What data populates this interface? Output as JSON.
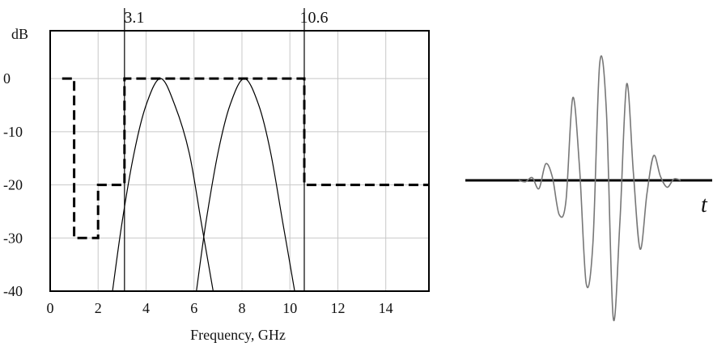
{
  "chart_data": [
    {
      "type": "line",
      "ylabel": "dB",
      "xlabel": "Frequency, GHz",
      "xlim": [
        0,
        15.8
      ],
      "ylim": [
        -40,
        9
      ],
      "x_ticks": [
        0,
        2,
        4,
        6,
        8,
        10,
        12,
        14
      ],
      "y_ticks": [
        0,
        -10,
        -20,
        -30,
        -40
      ],
      "grid": true,
      "legend": "none",
      "markers": [
        {
          "x": 3.1,
          "label": "3.1"
        },
        {
          "x": 10.6,
          "label": "10.6"
        }
      ],
      "series": [
        {
          "style": "dashed",
          "points": [
            [
              0.5,
              0
            ],
            [
              1.0,
              0
            ],
            [
              1.0,
              -30
            ],
            [
              2.0,
              -30
            ],
            [
              2.0,
              -20
            ],
            [
              3.1,
              -20
            ],
            [
              3.1,
              0
            ],
            [
              10.6,
              0
            ],
            [
              10.6,
              -20
            ],
            [
              15.8,
              -20
            ]
          ]
        },
        {
          "style": "solid",
          "points": [
            [
              2.6,
              -40
            ],
            [
              3.0,
              -27
            ],
            [
              3.5,
              -14
            ],
            [
              4.0,
              -5
            ],
            [
              4.6,
              0
            ],
            [
              5.2,
              -5
            ],
            [
              5.8,
              -14
            ],
            [
              6.3,
              -27
            ],
            [
              6.8,
              -40
            ]
          ]
        },
        {
          "style": "solid",
          "points": [
            [
              6.1,
              -40
            ],
            [
              6.5,
              -27
            ],
            [
              7.0,
              -14
            ],
            [
              7.5,
              -5
            ],
            [
              8.1,
              0
            ],
            [
              8.7,
              -5
            ],
            [
              9.2,
              -14
            ],
            [
              9.7,
              -27
            ],
            [
              10.2,
              -40
            ]
          ]
        }
      ]
    },
    {
      "type": "line",
      "xlabel": "t",
      "series": [
        {
          "style": "solid",
          "envelope_peak": 1.0,
          "x": [
            -6,
            -5.5,
            -5,
            -4.5,
            -4,
            -3.5,
            -3,
            -2.5,
            -2,
            -1.5,
            -1,
            -0.5,
            0,
            0.5,
            1,
            1.5,
            2,
            2.5,
            3,
            3.5,
            4,
            4.5,
            5,
            5.5,
            6
          ],
          "values": [
            0.0,
            -0.01,
            0.02,
            -0.06,
            0.12,
            0.02,
            -0.25,
            -0.15,
            0.6,
            0.1,
            -0.75,
            -0.45,
            0.85,
            0.5,
            -1.0,
            -0.3,
            0.7,
            0.05,
            -0.5,
            -0.1,
            0.18,
            0.03,
            -0.05,
            0.01,
            0.0
          ]
        }
      ]
    }
  ]
}
